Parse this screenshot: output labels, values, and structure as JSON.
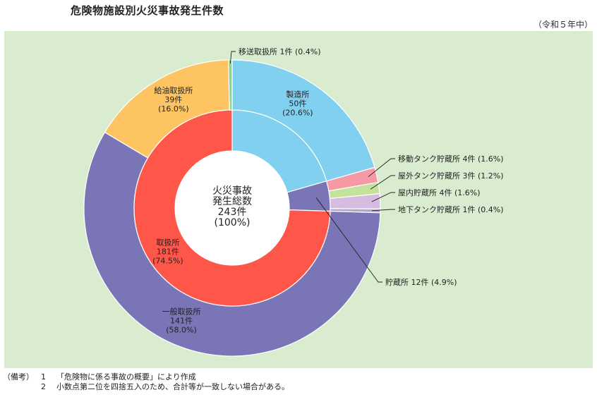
{
  "title": "危険物施設別火災事故発生件数",
  "year_label": "（令和５年中）",
  "colors": {
    "background": "#d9ecd0",
    "outer": [
      "#82d0f0",
      "#f59aa4",
      "#c5e29c",
      "#d6bde0",
      "#b0a7cf",
      "#7a75b6",
      "#fec461",
      "#8ed396",
      "#8b88c8"
    ],
    "inner": [
      "#82d0f0",
      "#7a75b6",
      "#fe574a"
    ],
    "center": "#ffffff"
  },
  "center_label": [
    "火災事故",
    "発生総数",
    "243件",
    "(100%)"
  ],
  "chart_data": {
    "type": "pie",
    "title": "危険物施設別火災事故発生件数",
    "total": 243,
    "outer": [
      {
        "name": "製造所",
        "value": 50,
        "percent": 20.6,
        "label": [
          "製造所",
          "50件",
          "(20.6%)"
        ]
      },
      {
        "name": "移動タンク貯蔵所",
        "value": 4,
        "percent": 1.6,
        "label": [
          "移動タンク貯蔵所 4件 (1.6%)"
        ]
      },
      {
        "name": "屋外タンク貯蔵所",
        "value": 3,
        "percent": 1.2,
        "label": [
          "屋外タンク貯蔵所 3件 (1.2%)"
        ]
      },
      {
        "name": "屋内貯蔵所",
        "value": 4,
        "percent": 1.6,
        "label": [
          "屋内貯蔵所 4件 (1.6%)"
        ]
      },
      {
        "name": "地下タンク貯蔵所",
        "value": 1,
        "percent": 0.4,
        "label": [
          "地下タンク貯蔵所 1件 (0.4%)"
        ]
      },
      {
        "name": "一般取扱所",
        "value": 141,
        "percent": 58.0,
        "label": [
          "一般取扱所",
          "141件",
          "(58.0%)"
        ]
      },
      {
        "name": "給油取扱所",
        "value": 39,
        "percent": 16.0,
        "label": [
          "給油取扱所",
          "39件",
          "(16.0%)"
        ]
      },
      {
        "name": "移送取扱所",
        "value": 1,
        "percent": 0.4,
        "label": [
          "移送取扱所 1件 (0.4%)"
        ]
      }
    ],
    "inner": [
      {
        "name": "製造所",
        "value": 50,
        "percent": 20.6
      },
      {
        "name": "貯蔵所",
        "value": 12,
        "percent": 4.9,
        "label": [
          "貯蔵所 12件 (4.9%)"
        ]
      },
      {
        "name": "取扱所",
        "value": 181,
        "percent": 74.5,
        "label": [
          "取扱所",
          "181件",
          "(74.5%)"
        ]
      }
    ]
  },
  "notes": {
    "head": "（備考）",
    "items": [
      {
        "num": "1",
        "text": "「危険物に係る事故の概要」により作成"
      },
      {
        "num": "2",
        "text": "小数点第二位を四捨五入のため、合計等が一致しない場合がある。"
      }
    ]
  }
}
